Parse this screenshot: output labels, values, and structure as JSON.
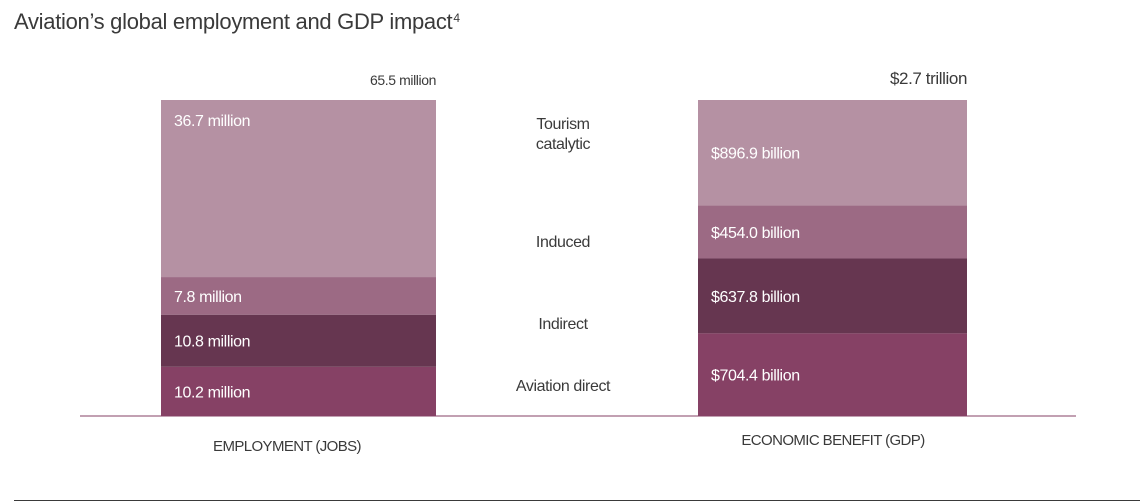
{
  "title": "Aviation’s global employment and GDP impact",
  "title_note": "4",
  "chart_data": {
    "type": "bar",
    "stacked": true,
    "categories": [
      "EMPLOYMENT (JOBS)",
      "ECONOMIC BENEFIT (GDP)"
    ],
    "segment_labels": [
      "Aviation direct",
      "Indirect",
      "Induced",
      "Tourism catalytic"
    ],
    "bars": [
      {
        "category": "EMPLOYMENT (JOBS)",
        "unit": "million jobs",
        "total": 65.5,
        "total_label": "65.5 million",
        "values": [
          10.2,
          10.8,
          7.8,
          36.7
        ],
        "value_labels": [
          "10.2 million",
          "10.8 million",
          "7.8 million",
          "36.7 million"
        ]
      },
      {
        "category": "ECONOMIC BENEFIT (GDP)",
        "unit": "billion USD",
        "total": 2693.1,
        "total_label": "$2.7 trillion",
        "values": [
          704.4,
          637.8,
          454.0,
          896.9
        ],
        "value_labels": [
          "$704.4 billion",
          "$637.8 billion",
          "$454.0 billion",
          "$896.9 billion"
        ]
      }
    ],
    "colors": [
      "#864165",
      "#663650",
      "#9c6a84",
      "#b591a3"
    ],
    "label_color": "#ffffff",
    "grid": false,
    "legend": "center"
  }
}
